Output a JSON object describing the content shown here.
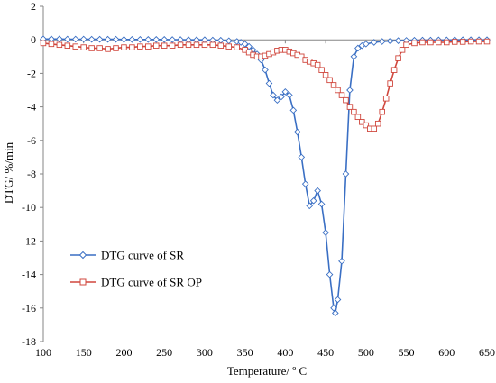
{
  "chart_data": {
    "type": "line",
    "title": "",
    "xlabel": "Temperature/ º C",
    "ylabel": "DTG/ %/min",
    "xlim": [
      100,
      650
    ],
    "ylim": [
      -18,
      2
    ],
    "xticks": [
      100,
      150,
      200,
      250,
      300,
      350,
      400,
      450,
      500,
      550,
      600,
      650
    ],
    "yticks": [
      -18,
      -16,
      -14,
      -12,
      -10,
      -8,
      -6,
      -4,
      -2,
      0,
      2
    ],
    "grid": false,
    "legend_position": "lower-left",
    "series": [
      {
        "name": "DTG curve of SR",
        "color": "#3a6fc4",
        "marker": "diamond",
        "x": [
          100,
          110,
          120,
          130,
          140,
          150,
          160,
          170,
          180,
          190,
          200,
          210,
          220,
          230,
          240,
          250,
          260,
          270,
          280,
          290,
          300,
          310,
          320,
          330,
          340,
          345,
          350,
          355,
          360,
          365,
          370,
          375,
          380,
          385,
          390,
          395,
          400,
          405,
          410,
          415,
          420,
          425,
          430,
          435,
          440,
          445,
          450,
          455,
          460,
          462,
          465,
          470,
          475,
          480,
          485,
          490,
          495,
          500,
          510,
          520,
          530,
          540,
          550,
          560,
          570,
          580,
          590,
          600,
          610,
          620,
          630,
          640,
          650
        ],
        "y": [
          0.05,
          0.05,
          0.05,
          0.04,
          0.04,
          0.04,
          0.03,
          0.03,
          0.03,
          0.03,
          0.02,
          0.02,
          0.02,
          0.02,
          0.02,
          0.02,
          0.01,
          0.01,
          0.0,
          0.0,
          0.0,
          -0.02,
          -0.03,
          -0.06,
          -0.1,
          -0.15,
          -0.25,
          -0.4,
          -0.6,
          -0.85,
          -1.2,
          -1.8,
          -2.6,
          -3.3,
          -3.6,
          -3.4,
          -3.1,
          -3.3,
          -4.2,
          -5.5,
          -7.0,
          -8.6,
          -9.9,
          -9.6,
          -9.0,
          -9.8,
          -11.5,
          -14.0,
          -16.0,
          -16.3,
          -15.5,
          -13.2,
          -8.0,
          -3.0,
          -1.0,
          -0.5,
          -0.35,
          -0.25,
          -0.15,
          -0.1,
          -0.07,
          -0.05,
          -0.04,
          -0.03,
          -0.02,
          -0.02,
          -0.01,
          -0.01,
          0.0,
          0.0,
          0.0,
          0.0,
          0.0
        ]
      },
      {
        "name": "DTG curve of SR OP",
        "color": "#d0473d",
        "marker": "square",
        "x": [
          100,
          110,
          120,
          130,
          140,
          150,
          160,
          170,
          180,
          190,
          200,
          210,
          220,
          230,
          240,
          250,
          260,
          270,
          280,
          290,
          300,
          310,
          320,
          330,
          340,
          350,
          355,
          360,
          365,
          370,
          375,
          380,
          385,
          390,
          395,
          400,
          405,
          410,
          415,
          420,
          425,
          430,
          435,
          440,
          445,
          450,
          455,
          460,
          465,
          470,
          475,
          480,
          485,
          490,
          495,
          500,
          505,
          510,
          515,
          520,
          525,
          530,
          535,
          540,
          545,
          550,
          560,
          570,
          580,
          590,
          600,
          610,
          620,
          630,
          640,
          650
        ],
        "y": [
          -0.2,
          -0.25,
          -0.3,
          -0.35,
          -0.4,
          -0.45,
          -0.5,
          -0.5,
          -0.55,
          -0.5,
          -0.45,
          -0.45,
          -0.4,
          -0.4,
          -0.35,
          -0.35,
          -0.35,
          -0.3,
          -0.3,
          -0.3,
          -0.3,
          -0.3,
          -0.35,
          -0.4,
          -0.45,
          -0.6,
          -0.75,
          -0.9,
          -1.0,
          -1.0,
          -0.95,
          -0.85,
          -0.75,
          -0.65,
          -0.6,
          -0.6,
          -0.7,
          -0.8,
          -0.9,
          -1.0,
          -1.2,
          -1.3,
          -1.4,
          -1.5,
          -1.8,
          -2.1,
          -2.4,
          -2.7,
          -3.0,
          -3.3,
          -3.6,
          -4.0,
          -4.3,
          -4.6,
          -4.9,
          -5.1,
          -5.3,
          -5.3,
          -5.0,
          -4.3,
          -3.5,
          -2.6,
          -1.8,
          -1.1,
          -0.6,
          -0.3,
          -0.2,
          -0.15,
          -0.15,
          -0.15,
          -0.15,
          -0.12,
          -0.12,
          -0.1,
          -0.1,
          -0.1
        ]
      }
    ]
  }
}
